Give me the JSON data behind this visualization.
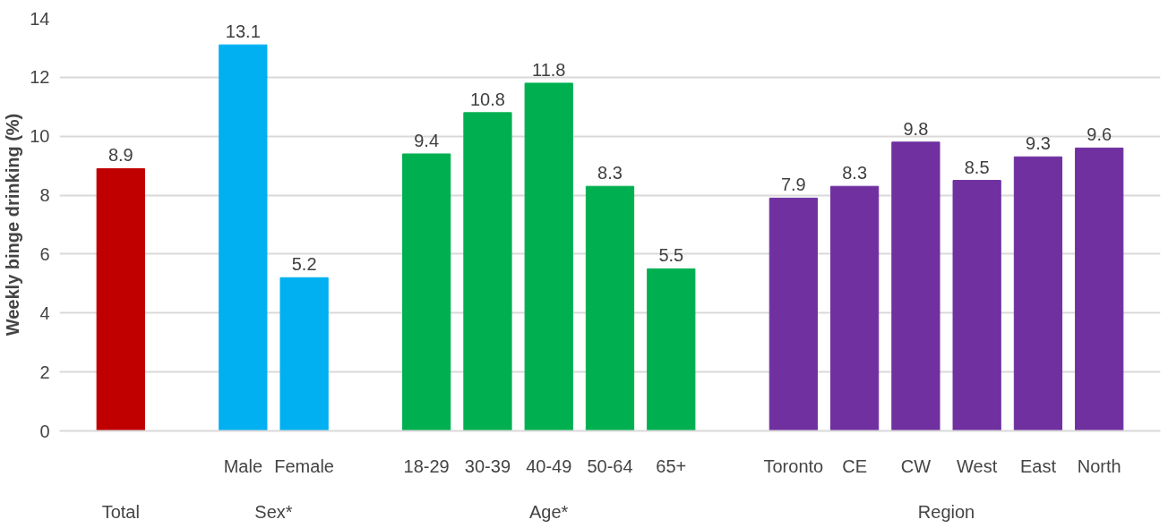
{
  "chart_data": {
    "type": "bar",
    "ylabel": "Weekly binge drinking (%)",
    "categories": [
      null,
      null,
      "Male",
      "Female",
      null,
      "18-29",
      "30-39",
      "40-49",
      "50-64",
      "65+",
      null,
      "Toronto",
      "CE",
      "CW",
      "West",
      "East",
      "North"
    ],
    "values": [
      8.9,
      null,
      13.1,
      5.2,
      null,
      9.4,
      10.8,
      11.8,
      8.3,
      5.5,
      null,
      7.9,
      8.3,
      9.8,
      8.5,
      9.3,
      9.6
    ],
    "colors": [
      "#c00000",
      null,
      "#00b0f0",
      "#00b0f0",
      null,
      "#00b050",
      "#00b050",
      "#00b050",
      "#00b050",
      "#00b050",
      null,
      "#7030a0",
      "#7030a0",
      "#7030a0",
      "#7030a0",
      "#7030a0",
      "#7030a0"
    ],
    "annotations": [
      "Total",
      "Sex*",
      "Age*",
      "Region"
    ],
    "ylim": [
      0,
      14
    ],
    "yticks": [
      0,
      2,
      4,
      6,
      8,
      10,
      12,
      14
    ],
    "grid": "y",
    "data_labels": true
  }
}
